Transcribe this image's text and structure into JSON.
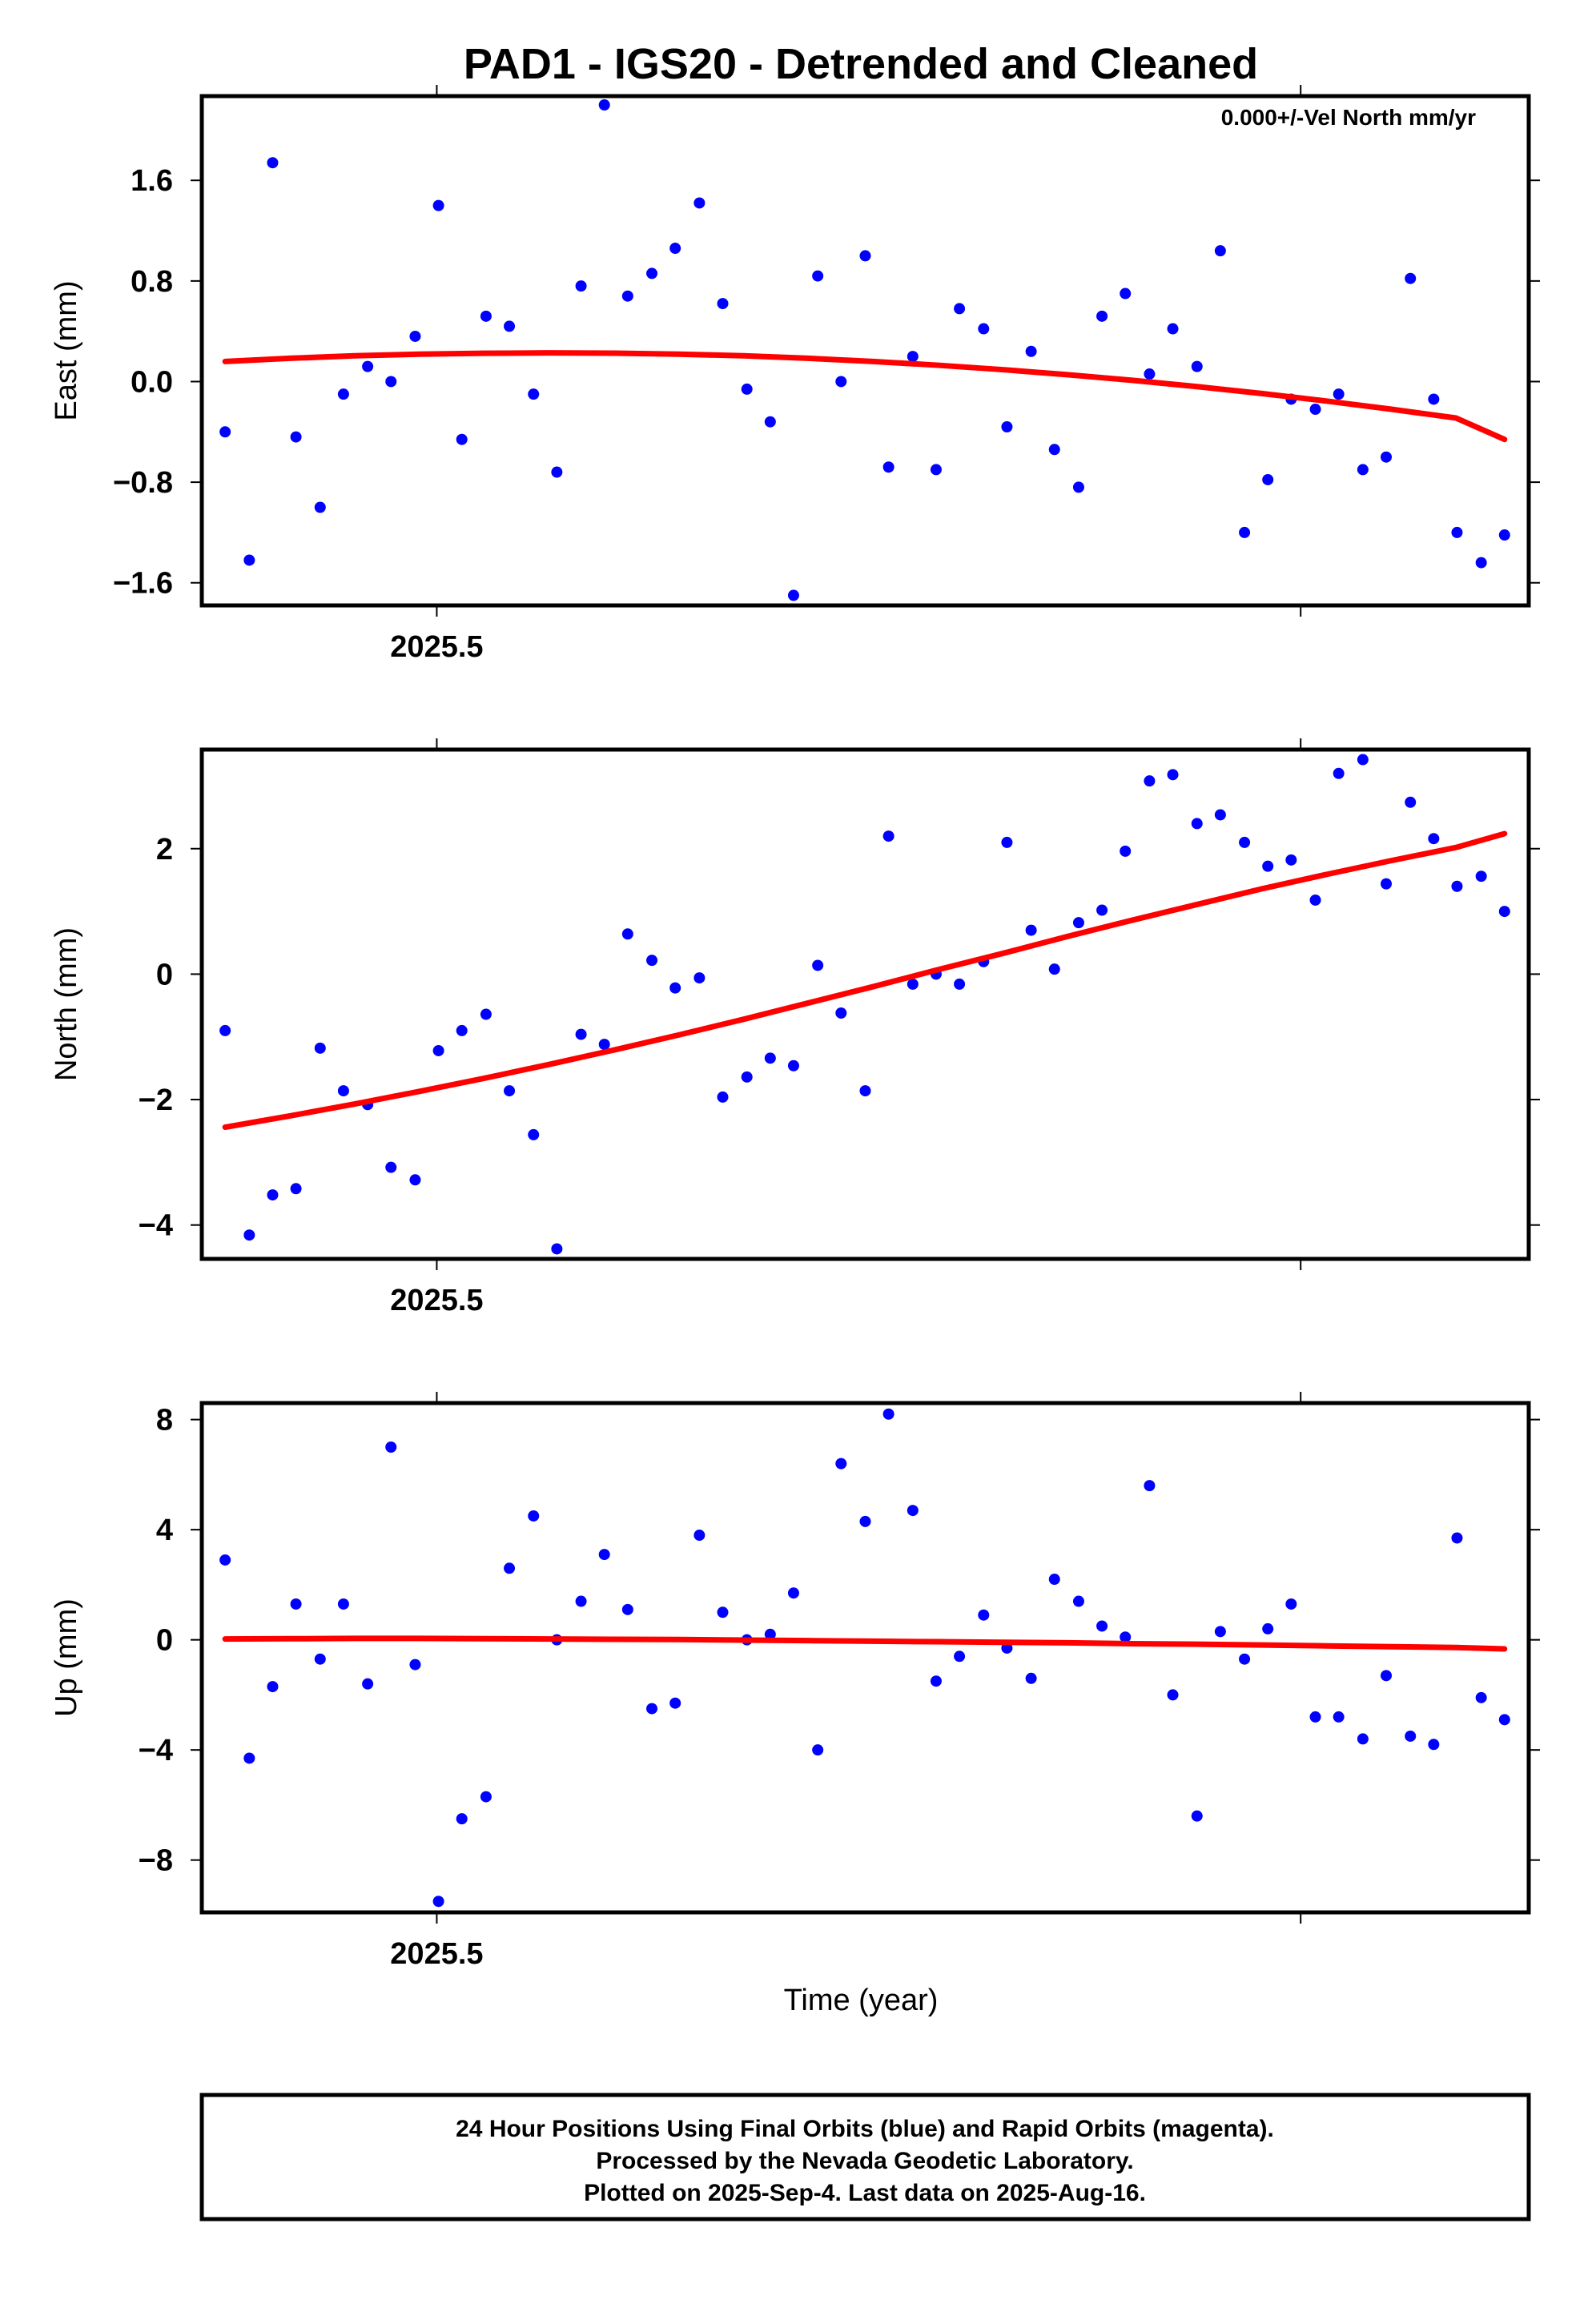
{
  "title": "PAD1 - IGS20 - Detrended and Cleaned",
  "xlabel": "Time (year)",
  "footer": {
    "line1": "24 Hour Positions Using Final Orbits (blue) and Rapid Orbits (magenta).",
    "line2": "Processed by the Nevada Geodetic Laboratory.",
    "line3": "Plotted on 2025-Sep-4. Last data on 2025-Aug-16."
  },
  "colors": {
    "points": "#0000ff",
    "fit": "#ff0000",
    "frame": "#000000"
  },
  "chart_data": [
    {
      "type": "scatter",
      "name": "east",
      "ylabel": "East (mm)",
      "annotation": "0.000+/-Vel North mm/yr",
      "xlim": [
        2025.4728,
        2025.6264
      ],
      "ylim": [
        -1.78,
        2.27
      ],
      "xtick_labels": [
        {
          "value": 2025.5,
          "label": "2025.5"
        }
      ],
      "xticks_unlabeled": [
        2025.6
      ],
      "yticks": [
        {
          "value": 1.6,
          "label": "1.6"
        },
        {
          "value": 0.8,
          "label": "0.8"
        },
        {
          "value": 0.0,
          "label": "0.0"
        },
        {
          "value": -0.8,
          "label": "−0.8"
        },
        {
          "value": -1.6,
          "label": "−1.6"
        }
      ],
      "x": [
        2025.4755,
        2025.4783,
        2025.481,
        2025.4837,
        2025.4865,
        2025.4892,
        2025.492,
        2025.4947,
        2025.4975,
        2025.5002,
        2025.5029,
        2025.5057,
        2025.5084,
        2025.5112,
        2025.5139,
        2025.5167,
        2025.5194,
        2025.5221,
        2025.5249,
        2025.5276,
        2025.5304,
        2025.5331,
        2025.5359,
        2025.5386,
        2025.5413,
        2025.5441,
        2025.5468,
        2025.5496,
        2025.5523,
        2025.5551,
        2025.5578,
        2025.5605,
        2025.5633,
        2025.566,
        2025.5688,
        2025.5715,
        2025.5743,
        2025.577,
        2025.5797,
        2025.5825,
        2025.5852,
        2025.588,
        2025.5907,
        2025.5935,
        2025.5962,
        2025.5989,
        2025.6017,
        2025.6044,
        2025.6072,
        2025.6099,
        2025.6127,
        2025.6154,
        2025.6181,
        2025.6209,
        2025.6236
      ],
      "y": [
        -0.4,
        -1.42,
        1.74,
        -0.44,
        -1.0,
        -0.1,
        0.12,
        0.0,
        0.36,
        1.4,
        -0.46,
        0.52,
        0.44,
        -0.1,
        -0.72,
        0.76,
        2.2,
        0.68,
        0.86,
        1.06,
        1.42,
        0.62,
        -0.06,
        -0.32,
        -1.7,
        0.84,
        0.0,
        1.0,
        -0.68,
        0.2,
        -0.7,
        0.58,
        0.42,
        -0.36,
        0.24,
        -0.54,
        -0.84,
        0.52,
        0.7,
        0.06,
        0.42,
        0.12,
        1.04,
        -1.2,
        -0.78,
        -0.14,
        -0.22,
        -0.1,
        -0.7,
        -0.6,
        0.82,
        -0.14,
        -1.2,
        -1.44,
        -1.22
      ],
      "fit": {
        "x": [
          2025.4755,
          2025.483,
          2025.4905,
          2025.498,
          2025.5055,
          2025.513,
          2025.5205,
          2025.528,
          2025.5355,
          2025.543,
          2025.5505,
          2025.558,
          2025.5655,
          2025.573,
          2025.5805,
          2025.588,
          2025.5955,
          2025.603,
          2025.6105,
          2025.618,
          2025.6236
        ],
        "y": [
          0.16,
          0.185,
          0.205,
          0.218,
          0.225,
          0.228,
          0.226,
          0.218,
          0.205,
          0.185,
          0.16,
          0.13,
          0.095,
          0.055,
          0.01,
          -0.04,
          -0.095,
          -0.155,
          -0.22,
          -0.29,
          -0.46
        ]
      }
    },
    {
      "type": "scatter",
      "name": "north",
      "ylabel": "North (mm)",
      "xlim": [
        2025.4728,
        2025.6264
      ],
      "ylim": [
        -4.54,
        3.58
      ],
      "xtick_labels": [
        {
          "value": 2025.5,
          "label": "2025.5"
        }
      ],
      "xticks_unlabeled": [
        2025.6
      ],
      "yticks": [
        {
          "value": 2,
          "label": "2"
        },
        {
          "value": 0,
          "label": "0"
        },
        {
          "value": -2,
          "label": "−2"
        },
        {
          "value": -4,
          "label": "−4"
        }
      ],
      "x": [
        2025.4755,
        2025.4783,
        2025.481,
        2025.4837,
        2025.4865,
        2025.4892,
        2025.492,
        2025.4947,
        2025.4975,
        2025.5002,
        2025.5029,
        2025.5057,
        2025.5084,
        2025.5112,
        2025.5139,
        2025.5167,
        2025.5194,
        2025.5221,
        2025.5249,
        2025.5276,
        2025.5304,
        2025.5331,
        2025.5359,
        2025.5386,
        2025.5413,
        2025.5441,
        2025.5468,
        2025.5496,
        2025.5523,
        2025.5551,
        2025.5578,
        2025.5605,
        2025.5633,
        2025.566,
        2025.5688,
        2025.5715,
        2025.5743,
        2025.577,
        2025.5797,
        2025.5825,
        2025.5852,
        2025.588,
        2025.5907,
        2025.5935,
        2025.5962,
        2025.5989,
        2025.6017,
        2025.6044,
        2025.6072,
        2025.6099,
        2025.6127,
        2025.6154,
        2025.6181,
        2025.6209,
        2025.6236
      ],
      "y": [
        -0.9,
        -4.16,
        -3.52,
        -3.42,
        -1.18,
        -1.86,
        -2.08,
        -3.08,
        -3.28,
        -1.22,
        -0.9,
        -0.64,
        -1.86,
        -2.56,
        -4.38,
        -0.96,
        -1.12,
        0.64,
        0.22,
        -0.22,
        -0.06,
        -1.96,
        -1.64,
        -1.34,
        -1.46,
        0.14,
        -0.62,
        -1.86,
        2.2,
        -0.16,
        0.0,
        -0.16,
        0.2,
        2.1,
        0.7,
        0.08,
        0.82,
        1.02,
        1.96,
        3.08,
        3.18,
        2.4,
        2.54,
        2.1,
        1.72,
        1.82,
        1.18,
        3.2,
        3.42,
        1.44,
        2.74,
        2.16,
        1.4,
        1.56,
        1.0
      ],
      "fit": {
        "x": [
          2025.4755,
          2025.483,
          2025.4905,
          2025.498,
          2025.5055,
          2025.513,
          2025.5205,
          2025.528,
          2025.5355,
          2025.543,
          2025.5505,
          2025.558,
          2025.5655,
          2025.573,
          2025.5805,
          2025.588,
          2025.5955,
          2025.603,
          2025.6105,
          2025.618,
          2025.6236
        ],
        "y": [
          -2.44,
          -2.26,
          -2.07,
          -1.87,
          -1.66,
          -1.44,
          -1.21,
          -0.97,
          -0.72,
          -0.46,
          -0.2,
          0.07,
          0.33,
          0.6,
          0.86,
          1.11,
          1.36,
          1.59,
          1.81,
          2.02,
          2.24
        ]
      }
    },
    {
      "type": "scatter",
      "name": "up",
      "ylabel": "Up (mm)",
      "xlim": [
        2025.4728,
        2025.6264
      ],
      "ylim": [
        -9.9,
        8.6
      ],
      "xtick_labels": [
        {
          "value": 2025.5,
          "label": "2025.5"
        }
      ],
      "xticks_unlabeled": [
        2025.6
      ],
      "yticks": [
        {
          "value": 8,
          "label": "8"
        },
        {
          "value": 4,
          "label": "4"
        },
        {
          "value": 0,
          "label": "0"
        },
        {
          "value": -4,
          "label": "−4"
        },
        {
          "value": -8,
          "label": "−8"
        }
      ],
      "x": [
        2025.4755,
        2025.4783,
        2025.481,
        2025.4837,
        2025.4865,
        2025.4892,
        2025.492,
        2025.4947,
        2025.4975,
        2025.5002,
        2025.5029,
        2025.5057,
        2025.5084,
        2025.5112,
        2025.5139,
        2025.5167,
        2025.5194,
        2025.5221,
        2025.5249,
        2025.5276,
        2025.5304,
        2025.5331,
        2025.5359,
        2025.5386,
        2025.5413,
        2025.5441,
        2025.5468,
        2025.5496,
        2025.5523,
        2025.5551,
        2025.5578,
        2025.5605,
        2025.5633,
        2025.566,
        2025.5688,
        2025.5715,
        2025.5743,
        2025.577,
        2025.5797,
        2025.5825,
        2025.5852,
        2025.588,
        2025.5907,
        2025.5935,
        2025.5962,
        2025.5989,
        2025.6017,
        2025.6044,
        2025.6072,
        2025.6099,
        2025.6127,
        2025.6154,
        2025.6181,
        2025.6209,
        2025.6236
      ],
      "y": [
        2.9,
        -4.3,
        -1.7,
        1.3,
        -0.7,
        1.3,
        -1.6,
        7.0,
        -0.9,
        -9.5,
        -6.5,
        -5.7,
        2.6,
        4.5,
        0.0,
        1.4,
        3.1,
        1.1,
        -2.5,
        -2.3,
        3.8,
        1.0,
        0.0,
        0.2,
        1.7,
        -4.0,
        6.4,
        4.3,
        8.2,
        4.7,
        -1.5,
        -0.6,
        0.9,
        -0.3,
        -1.4,
        2.2,
        1.4,
        0.5,
        0.1,
        5.6,
        -2.0,
        -6.4,
        0.3,
        -0.7,
        0.4,
        1.3,
        -2.8,
        -2.8,
        -3.6,
        -1.3,
        -3.5,
        -3.8,
        3.7,
        -2.1,
        -2.9
      ],
      "fit": {
        "x": [
          2025.4755,
          2025.483,
          2025.4905,
          2025.498,
          2025.5055,
          2025.513,
          2025.5205,
          2025.528,
          2025.5355,
          2025.543,
          2025.5505,
          2025.558,
          2025.5655,
          2025.573,
          2025.5805,
          2025.588,
          2025.5955,
          2025.603,
          2025.6105,
          2025.618,
          2025.6236
        ],
        "y": [
          0.03,
          0.04,
          0.05,
          0.05,
          0.04,
          0.03,
          0.02,
          0.01,
          -0.01,
          -0.03,
          -0.05,
          -0.07,
          -0.09,
          -0.11,
          -0.14,
          -0.16,
          -0.19,
          -0.22,
          -0.25,
          -0.28,
          -0.33
        ]
      }
    }
  ]
}
